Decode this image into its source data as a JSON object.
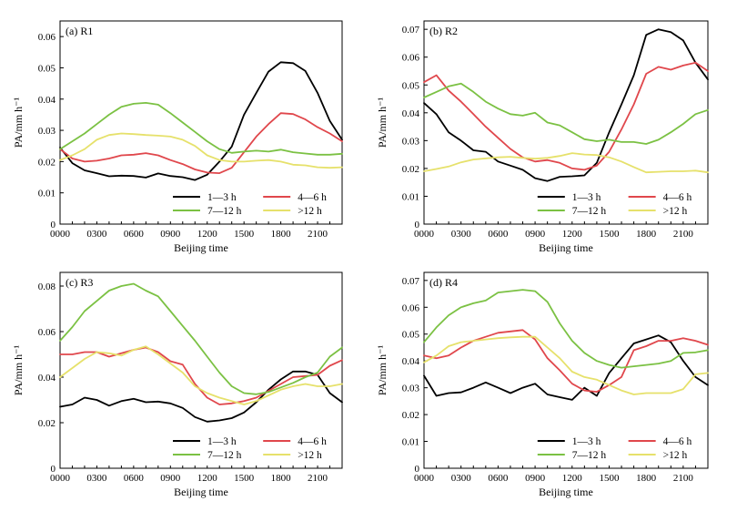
{
  "chart_data": [
    {
      "type": "line",
      "title": "(a)  R1",
      "xlabel": "Beijing time",
      "ylabel": "PA/mm h⁻¹",
      "x": [
        "0000",
        "0100",
        "0200",
        "0300",
        "0400",
        "0500",
        "0600",
        "0700",
        "0800",
        "0900",
        "1000",
        "1100",
        "1200",
        "1300",
        "1400",
        "1500",
        "1600",
        "1700",
        "1800",
        "1900",
        "2000",
        "2100",
        "2200",
        "2300"
      ],
      "xticks": [
        "0000",
        "0300",
        "0600",
        "0900",
        "1200",
        "1500",
        "1800",
        "2100"
      ],
      "yticks": [
        "0",
        "0.01",
        "0.02",
        "0.03",
        "0.04",
        "0.05",
        "0.06"
      ],
      "ylim": [
        0,
        0.065
      ],
      "legend_placement": "bottom-right",
      "series": [
        {
          "name": "1—3 h",
          "color": "#000000",
          "values": [
            0.0245,
            0.0195,
            0.0172,
            0.0163,
            0.0153,
            0.0155,
            0.0154,
            0.0149,
            0.0162,
            0.0154,
            0.015,
            0.0141,
            0.0158,
            0.02,
            0.0248,
            0.035,
            0.042,
            0.0488,
            0.0518,
            0.0515,
            0.049,
            0.042,
            0.033,
            0.027
          ]
        },
        {
          "name": "4—6 h",
          "color": "#e0474c",
          "values": [
            0.024,
            0.021,
            0.02,
            0.0203,
            0.021,
            0.022,
            0.0222,
            0.0227,
            0.022,
            0.0205,
            0.0192,
            0.0175,
            0.0165,
            0.0163,
            0.018,
            0.023,
            0.028,
            0.032,
            0.0355,
            0.0352,
            0.0335,
            0.031,
            0.029,
            0.0265
          ]
        },
        {
          "name": "7—12 h",
          "color": "#7bc143",
          "values": [
            0.024,
            0.0265,
            0.029,
            0.032,
            0.035,
            0.0375,
            0.0385,
            0.0388,
            0.0382,
            0.0355,
            0.0325,
            0.0295,
            0.0265,
            0.024,
            0.0228,
            0.0232,
            0.0235,
            0.0232,
            0.0238,
            0.023,
            0.0226,
            0.0222,
            0.0222,
            0.0225
          ]
        },
        {
          "name": ">12 h",
          "color": "#e6e16b",
          "values": [
            0.0205,
            0.022,
            0.024,
            0.027,
            0.0285,
            0.029,
            0.0288,
            0.0285,
            0.0283,
            0.028,
            0.027,
            0.025,
            0.022,
            0.0205,
            0.02,
            0.02,
            0.0203,
            0.0205,
            0.02,
            0.019,
            0.0188,
            0.0182,
            0.018,
            0.0182
          ]
        }
      ]
    },
    {
      "type": "line",
      "title": "(b)  R2",
      "xlabel": "Beijing time",
      "ylabel": "PA/mm h⁻¹",
      "x": [
        "0000",
        "0100",
        "0200",
        "0300",
        "0400",
        "0500",
        "0600",
        "0700",
        "0800",
        "0900",
        "1000",
        "1100",
        "1200",
        "1300",
        "1400",
        "1500",
        "1600",
        "1700",
        "1800",
        "1900",
        "2000",
        "2100",
        "2200",
        "2300"
      ],
      "xticks": [
        "0000",
        "0300",
        "0600",
        "0900",
        "1200",
        "1500",
        "1800",
        "2100"
      ],
      "yticks": [
        "0",
        "0.01",
        "0.02",
        "0.03",
        "0.04",
        "0.05",
        "0.06",
        "0.07"
      ],
      "ylim": [
        0,
        0.073
      ],
      "legend_placement": "bottom-right",
      "series": [
        {
          "name": "1—3 h",
          "color": "#000000",
          "values": [
            0.0435,
            0.0395,
            0.033,
            0.03,
            0.0265,
            0.026,
            0.0225,
            0.021,
            0.0195,
            0.0165,
            0.0155,
            0.017,
            0.0172,
            0.0175,
            0.022,
            0.033,
            0.043,
            0.0535,
            0.068,
            0.07,
            0.069,
            0.066,
            0.058,
            0.052
          ]
        },
        {
          "name": "4—6 h",
          "color": "#e0474c",
          "values": [
            0.051,
            0.0535,
            0.048,
            0.044,
            0.0395,
            0.035,
            0.031,
            0.027,
            0.024,
            0.0225,
            0.023,
            0.022,
            0.02,
            0.0195,
            0.021,
            0.026,
            0.034,
            0.043,
            0.054,
            0.0565,
            0.0555,
            0.057,
            0.058,
            0.055
          ]
        },
        {
          "name": "7—12 h",
          "color": "#7bc143",
          "values": [
            0.0455,
            0.0475,
            0.0495,
            0.0505,
            0.0475,
            0.044,
            0.0415,
            0.0395,
            0.039,
            0.04,
            0.0365,
            0.0355,
            0.033,
            0.0305,
            0.0298,
            0.0303,
            0.0295,
            0.0295,
            0.0288,
            0.0303,
            0.033,
            0.036,
            0.0395,
            0.041
          ]
        },
        {
          "name": ">12 h",
          "color": "#e6e16b",
          "values": [
            0.019,
            0.0198,
            0.0207,
            0.0222,
            0.0232,
            0.0236,
            0.024,
            0.0242,
            0.0238,
            0.0235,
            0.0238,
            0.0245,
            0.0255,
            0.025,
            0.0248,
            0.024,
            0.0225,
            0.0205,
            0.0186,
            0.0188,
            0.019,
            0.019,
            0.0192,
            0.0186
          ]
        }
      ]
    },
    {
      "type": "line",
      "title": "(c)  R3",
      "xlabel": "Beijing time",
      "ylabel": "PA/mm h⁻¹",
      "x": [
        "0000",
        "0100",
        "0200",
        "0300",
        "0400",
        "0500",
        "0600",
        "0700",
        "0800",
        "0900",
        "1000",
        "1100",
        "1200",
        "1300",
        "1400",
        "1500",
        "1600",
        "1700",
        "1800",
        "1900",
        "2000",
        "2100",
        "2200",
        "2300"
      ],
      "xticks": [
        "0000",
        "0300",
        "0600",
        "0900",
        "1200",
        "1500",
        "1800",
        "2100"
      ],
      "yticks": [
        "0",
        "0.02",
        "0.04",
        "0.06",
        "0.08"
      ],
      "ylim": [
        0,
        0.086
      ],
      "legend_placement": "bottom-right",
      "series": [
        {
          "name": "1—3 h",
          "color": "#000000",
          "values": [
            0.027,
            0.028,
            0.031,
            0.03,
            0.0275,
            0.0295,
            0.0305,
            0.029,
            0.0293,
            0.0285,
            0.0265,
            0.0225,
            0.0205,
            0.021,
            0.022,
            0.0245,
            0.029,
            0.0345,
            0.039,
            0.0425,
            0.0425,
            0.041,
            0.033,
            0.029
          ]
        },
        {
          "name": "4—6 h",
          "color": "#e0474c",
          "values": [
            0.05,
            0.05,
            0.051,
            0.051,
            0.049,
            0.0505,
            0.052,
            0.053,
            0.051,
            0.047,
            0.0455,
            0.037,
            0.031,
            0.028,
            0.0285,
            0.0295,
            0.031,
            0.034,
            0.037,
            0.04,
            0.0405,
            0.041,
            0.045,
            0.0475
          ]
        },
        {
          "name": "7—12 h",
          "color": "#7bc143",
          "values": [
            0.056,
            0.062,
            0.069,
            0.0735,
            0.078,
            0.08,
            0.081,
            0.078,
            0.0755,
            0.069,
            0.0625,
            0.056,
            0.049,
            0.042,
            0.036,
            0.033,
            0.0325,
            0.0335,
            0.0355,
            0.0375,
            0.04,
            0.042,
            0.049,
            0.053
          ]
        },
        {
          "name": ">12 h",
          "color": "#e6e16b",
          "values": [
            0.04,
            0.044,
            0.048,
            0.051,
            0.0505,
            0.0495,
            0.052,
            0.0535,
            0.05,
            0.046,
            0.042,
            0.036,
            0.033,
            0.031,
            0.0295,
            0.028,
            0.0295,
            0.032,
            0.0345,
            0.036,
            0.037,
            0.036,
            0.036,
            0.037
          ]
        }
      ]
    },
    {
      "type": "line",
      "title": "(d)  R4",
      "xlabel": "Beijing time",
      "ylabel": "PA/mm h⁻¹",
      "x": [
        "0000",
        "0100",
        "0200",
        "0300",
        "0400",
        "0500",
        "0600",
        "0700",
        "0800",
        "0900",
        "1000",
        "1100",
        "1200",
        "1300",
        "1400",
        "1500",
        "1600",
        "1700",
        "1800",
        "1900",
        "2000",
        "2100",
        "2200",
        "2300"
      ],
      "xticks": [
        "0000",
        "0300",
        "0600",
        "0900",
        "1200",
        "1500",
        "1800",
        "2100"
      ],
      "yticks": [
        "0",
        "0.01",
        "0.02",
        "0.03",
        "0.04",
        "0.05",
        "0.06",
        "0.07"
      ],
      "ylim": [
        0,
        0.073
      ],
      "legend_placement": "bottom-right",
      "series": [
        {
          "name": "1—3 h",
          "color": "#000000",
          "values": [
            0.0345,
            0.027,
            0.028,
            0.0283,
            0.03,
            0.032,
            0.03,
            0.028,
            0.03,
            0.0315,
            0.0275,
            0.0265,
            0.0255,
            0.03,
            0.027,
            0.0355,
            0.041,
            0.0465,
            0.048,
            0.0495,
            0.047,
            0.04,
            0.034,
            0.031
          ]
        },
        {
          "name": "4—6 h",
          "color": "#e0474c",
          "values": [
            0.042,
            0.041,
            0.042,
            0.045,
            0.0475,
            0.049,
            0.0505,
            0.051,
            0.0515,
            0.048,
            0.041,
            0.0365,
            0.0315,
            0.029,
            0.0285,
            0.031,
            0.034,
            0.044,
            0.0455,
            0.0475,
            0.0475,
            0.0485,
            0.0475,
            0.046
          ]
        },
        {
          "name": "7—12 h",
          "color": "#7bc143",
          "values": [
            0.047,
            0.0525,
            0.057,
            0.06,
            0.0615,
            0.0625,
            0.0655,
            0.066,
            0.0665,
            0.066,
            0.062,
            0.054,
            0.0475,
            0.043,
            0.04,
            0.0385,
            0.0375,
            0.038,
            0.0385,
            0.039,
            0.04,
            0.043,
            0.0432,
            0.044
          ]
        },
        {
          "name": ">12 h",
          "color": "#e6e16b",
          "values": [
            0.0395,
            0.042,
            0.0455,
            0.047,
            0.0475,
            0.048,
            0.0485,
            0.0488,
            0.049,
            0.049,
            0.045,
            0.041,
            0.036,
            0.034,
            0.033,
            0.031,
            0.029,
            0.0275,
            0.028,
            0.028,
            0.028,
            0.0295,
            0.035,
            0.0355
          ]
        }
      ]
    }
  ]
}
